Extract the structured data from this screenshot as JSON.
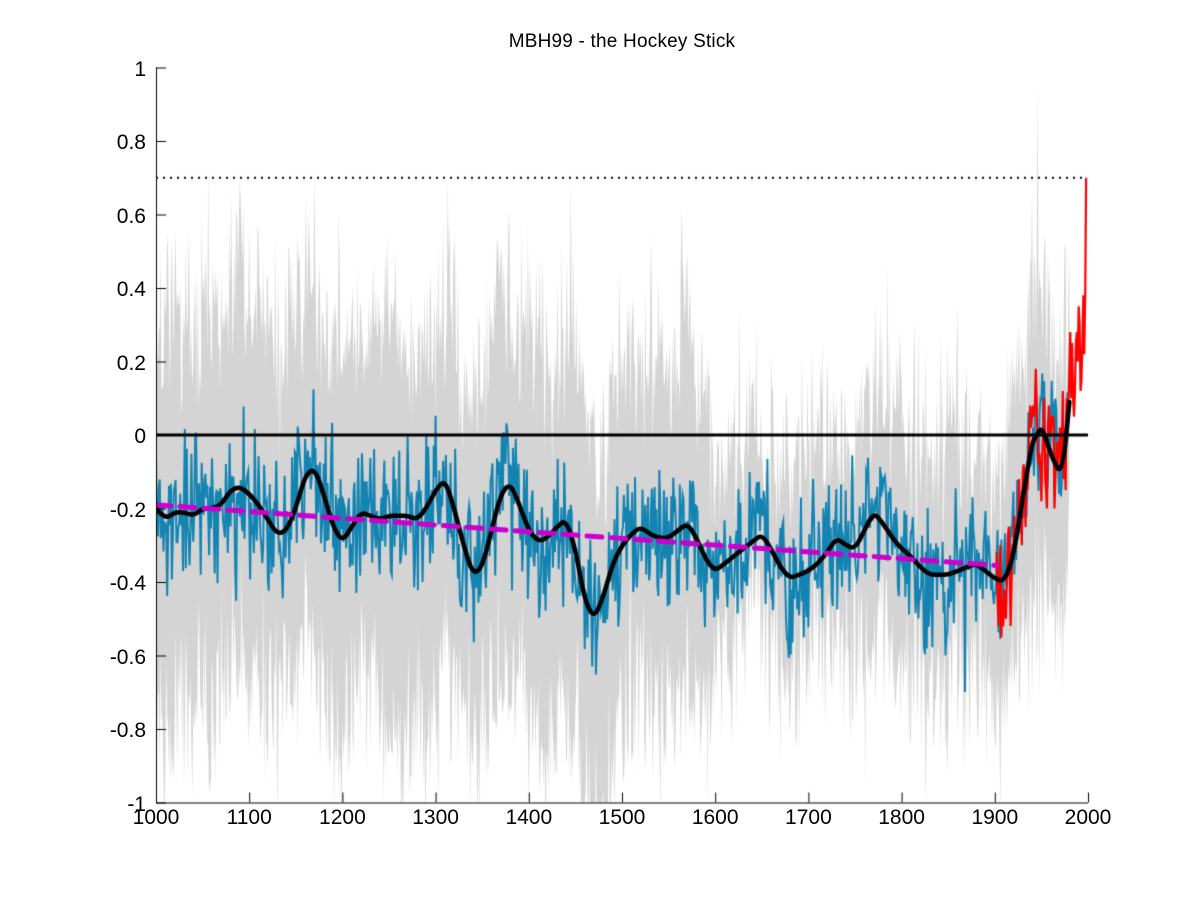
{
  "page": {
    "background": "#ffffff"
  },
  "chart_data": {
    "type": "line",
    "title": "MBH99 - the Hockey Stick",
    "xlabel": "",
    "ylabel": "",
    "xlim": [
      1000,
      2000
    ],
    "ylim": [
      -1,
      1
    ],
    "grid": false,
    "legend": "none",
    "axis_color": "#000000",
    "xticks": {
      "values": [
        1000,
        1100,
        1200,
        1300,
        1400,
        1500,
        1600,
        1700,
        1800,
        1900,
        2000
      ],
      "labels": [
        "1000",
        "1100",
        "1200",
        "1300",
        "1400",
        "1500",
        "1600",
        "1700",
        "1800",
        "1900",
        "2000"
      ]
    },
    "yticks": {
      "values": [
        1,
        0.8,
        0.6,
        0.4,
        0.2,
        0,
        -0.2,
        -0.4,
        -0.6,
        -0.8,
        -1
      ],
      "labels": [
        "1",
        "0.8",
        "0.6",
        "0.4",
        "0.2",
        "0",
        "-0.2",
        "-0.4",
        "-0.6",
        "-0.8",
        "-1"
      ]
    },
    "reference_lines": [
      {
        "name": "zero-line",
        "y": 0,
        "style": "solid",
        "color": "#000000",
        "width": 3
      },
      {
        "name": "upper-dotted-reference",
        "y": 0.7,
        "style": "dotted",
        "color": "#000000",
        "width": 2,
        "x_start": 1000,
        "x_end": 1998
      }
    ],
    "trend_line": {
      "name": "millennial-cooling-trend",
      "style": "dashed",
      "color": "#cc00cc",
      "width": 5,
      "x": [
        1000,
        1902
      ],
      "y": [
        -0.19,
        -0.355
      ]
    },
    "noise_seed": 1999,
    "series": [
      {
        "name": "uncertainty-band",
        "type": "band",
        "color": "#d4d4d4",
        "x_start": 1000,
        "x_end": 1980,
        "halfwidth_x": [
          1000,
          1100,
          1200,
          1300,
          1400,
          1450,
          1460,
          1490,
          1500,
          1590,
          1600,
          1700,
          1800,
          1900,
          1915,
          1980
        ],
        "halfwidth": [
          0.5,
          0.5,
          0.53,
          0.52,
          0.52,
          0.54,
          0.55,
          0.5,
          0.48,
          0.46,
          0.3,
          0.29,
          0.28,
          0.3,
          0.38,
          0.38
        ],
        "edge_noise_sd": 0.13
      },
      {
        "name": "annual-reconstruction",
        "type": "noisy-line",
        "color": "#1384b2",
        "width": 2,
        "x_start": 1000,
        "x_end": 1980,
        "noise_sd": 0.095
      },
      {
        "name": "smoothed-reconstruction",
        "type": "smooth-line",
        "color": "#000000",
        "width": 4.5,
        "x": [
          1000,
          1010,
          1020,
          1030,
          1040,
          1050,
          1060,
          1070,
          1080,
          1090,
          1100,
          1110,
          1120,
          1130,
          1140,
          1150,
          1160,
          1170,
          1180,
          1190,
          1200,
          1210,
          1220,
          1230,
          1240,
          1250,
          1260,
          1270,
          1280,
          1290,
          1300,
          1310,
          1320,
          1330,
          1340,
          1350,
          1360,
          1370,
          1380,
          1390,
          1400,
          1410,
          1420,
          1430,
          1440,
          1450,
          1460,
          1470,
          1480,
          1490,
          1500,
          1510,
          1520,
          1530,
          1540,
          1550,
          1560,
          1570,
          1580,
          1590,
          1600,
          1610,
          1620,
          1630,
          1640,
          1650,
          1660,
          1670,
          1680,
          1690,
          1700,
          1710,
          1720,
          1730,
          1740,
          1750,
          1760,
          1770,
          1780,
          1790,
          1800,
          1810,
          1820,
          1830,
          1840,
          1850,
          1860,
          1870,
          1880,
          1890,
          1900,
          1910,
          1920,
          1930,
          1940,
          1945,
          1950,
          1955,
          1960,
          1965,
          1970,
          1975,
          1980
        ],
        "y": [
          -0.2,
          -0.23,
          -0.21,
          -0.21,
          -0.22,
          -0.2,
          -0.2,
          -0.19,
          -0.15,
          -0.14,
          -0.16,
          -0.19,
          -0.23,
          -0.27,
          -0.26,
          -0.2,
          -0.11,
          -0.09,
          -0.16,
          -0.25,
          -0.29,
          -0.25,
          -0.21,
          -0.22,
          -0.23,
          -0.22,
          -0.22,
          -0.22,
          -0.23,
          -0.2,
          -0.15,
          -0.12,
          -0.2,
          -0.3,
          -0.38,
          -0.36,
          -0.26,
          -0.16,
          -0.13,
          -0.19,
          -0.26,
          -0.29,
          -0.28,
          -0.25,
          -0.23,
          -0.31,
          -0.45,
          -0.5,
          -0.44,
          -0.35,
          -0.3,
          -0.27,
          -0.25,
          -0.27,
          -0.28,
          -0.28,
          -0.26,
          -0.24,
          -0.28,
          -0.34,
          -0.37,
          -0.35,
          -0.33,
          -0.31,
          -0.29,
          -0.27,
          -0.31,
          -0.36,
          -0.39,
          -0.38,
          -0.37,
          -0.35,
          -0.32,
          -0.28,
          -0.3,
          -0.31,
          -0.26,
          -0.21,
          -0.24,
          -0.28,
          -0.31,
          -0.33,
          -0.36,
          -0.38,
          -0.38,
          -0.38,
          -0.37,
          -0.36,
          -0.35,
          -0.37,
          -0.39,
          -0.4,
          -0.33,
          -0.17,
          -0.02,
          0.0,
          0.02,
          -0.01,
          -0.05,
          -0.08,
          -0.1,
          -0.05,
          0.09
        ]
      },
      {
        "name": "instrumental-record",
        "type": "line",
        "color": "#ff0000",
        "width": 2.2,
        "x_start": 1902,
        "x_step": 1,
        "y": [
          -0.32,
          -0.45,
          -0.52,
          -0.38,
          -0.3,
          -0.55,
          -0.45,
          -0.52,
          -0.42,
          -0.48,
          -0.5,
          -0.38,
          -0.28,
          -0.25,
          -0.38,
          -0.52,
          -0.4,
          -0.3,
          -0.3,
          -0.22,
          -0.32,
          -0.28,
          -0.28,
          -0.22,
          -0.12,
          -0.2,
          -0.18,
          -0.3,
          -0.1,
          -0.08,
          -0.12,
          -0.25,
          -0.1,
          -0.15,
          -0.1,
          0.02,
          0.08,
          0.02,
          0.05,
          0.08,
          0.05,
          0.08,
          0.18,
          0.08,
          -0.05,
          -0.08,
          -0.05,
          -0.1,
          -0.18,
          -0.05,
          0.02,
          0.1,
          -0.12,
          -0.15,
          -0.2,
          0.02,
          0.08,
          0.03,
          0.0,
          0.05,
          0.02,
          0.05,
          -0.2,
          -0.12,
          -0.05,
          -0.02,
          -0.08,
          -0.02,
          0.02,
          -0.08,
          -0.02,
          0.12,
          -0.12,
          -0.02,
          -0.15,
          0.1,
          0.02,
          0.08,
          0.18,
          0.28,
          0.1,
          0.25,
          0.1,
          0.05,
          0.12,
          0.25,
          0.28,
          0.2,
          0.35,
          0.3,
          0.12,
          0.15,
          0.25,
          0.38,
          0.22,
          0.38,
          0.7
        ]
      }
    ]
  }
}
